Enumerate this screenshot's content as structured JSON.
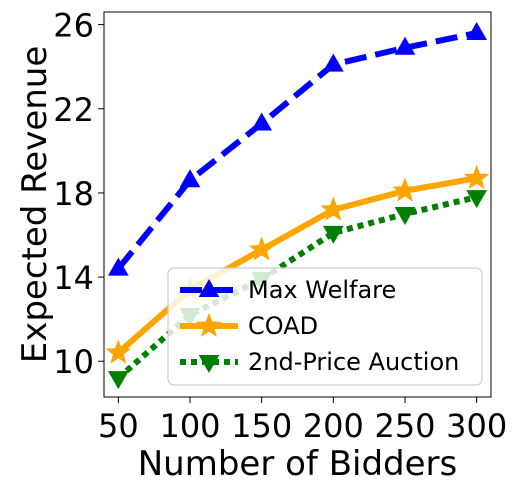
{
  "chart_data": {
    "type": "line",
    "title": "",
    "xlabel": "Number of Bidders",
    "ylabel": "Expected Revenue",
    "x": [
      50,
      100,
      150,
      200,
      250,
      300
    ],
    "xticks": [
      "50",
      "100",
      "150",
      "200",
      "250",
      "300"
    ],
    "yticks": [
      "10",
      "14",
      "18",
      "22",
      "26"
    ],
    "ylim": [
      8.3,
      26.6
    ],
    "xlim": [
      40,
      310
    ],
    "grid": false,
    "legend_position": "lower-right",
    "series": [
      {
        "name": "Max Welfare",
        "values": [
          14.4,
          18.6,
          21.3,
          24.1,
          24.9,
          25.6
        ],
        "color": "#0000ff",
        "line_style": "dashed",
        "marker": "triangle-up"
      },
      {
        "name": "COAD",
        "values": [
          10.4,
          13.4,
          15.3,
          17.2,
          18.1,
          18.7
        ],
        "color": "#ffa500",
        "line_style": "solid",
        "marker": "star"
      },
      {
        "name": "2nd-Price Auction",
        "values": [
          9.2,
          12.2,
          13.9,
          16.1,
          17.0,
          17.8
        ],
        "color": "#008000",
        "line_style": "dotted",
        "marker": "triangle-down"
      }
    ]
  }
}
